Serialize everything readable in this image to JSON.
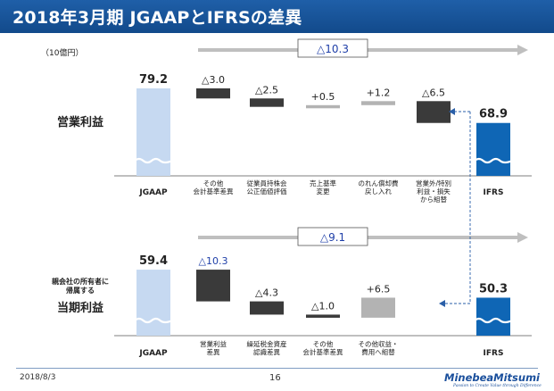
{
  "header": {
    "title": "2018年3月期 JGAAPとIFRSの差異"
  },
  "unit_label": "（10億円）",
  "footer": {
    "date": "2018/8/3",
    "page": "16"
  },
  "logo": {
    "name": "MinebeaMitsumi",
    "tagline": "Passion to Create Value through Difference"
  },
  "colors": {
    "header": "#124a8b",
    "jgaap": "#c6d9f1",
    "ifrs": "#0f66b5",
    "negative": "#3a3a3a",
    "positive": "#b3b3b3",
    "total_arrow": "#bfbfbf",
    "highlight_text": "#1f3fa8"
  },
  "chart_data": [
    {
      "type": "waterfall",
      "row_label": "営業利益",
      "total_change": {
        "label": "△10.3",
        "value": -10.3
      },
      "start": {
        "category": "JGAAP",
        "value": 79.2,
        "label": "79.2"
      },
      "end": {
        "category": "IFRS",
        "value": 68.9,
        "label": "68.9"
      },
      "steps": [
        {
          "category": "その他\n会計基準差異",
          "value": -3.0,
          "label": "△3.0"
        },
        {
          "category": "従業員持株会\n公正価値評価",
          "value": -2.5,
          "label": "△2.5"
        },
        {
          "category": "売上基準\n変更",
          "value": 0.5,
          "label": "+0.5"
        },
        {
          "category": "のれん償却費\n戻し入れ",
          "value": 1.2,
          "label": "+1.2"
        },
        {
          "category": "営業外/特別\n利益・損失\nから組替",
          "value": -6.5,
          "label": "△6.5"
        }
      ]
    },
    {
      "type": "waterfall",
      "row_label": "当期利益",
      "row_sublabel": "親会社の所有者に\n帰属する",
      "total_change": {
        "label": "△9.1",
        "value": -9.1
      },
      "start": {
        "category": "JGAAP",
        "value": 59.4,
        "label": "59.4"
      },
      "end": {
        "category": "IFRS",
        "value": 50.3,
        "label": "50.3"
      },
      "steps": [
        {
          "category": "営業利益\n差異",
          "value": -10.3,
          "label": "△10.3",
          "highlight": true
        },
        {
          "category": "繰延税金資産\n認識差異",
          "value": -4.3,
          "label": "△4.3"
        },
        {
          "category": "その他\n会計基準差異",
          "value": -1.0,
          "label": "△1.0"
        },
        {
          "category": "その他収益・\n費用へ組替",
          "value": 6.5,
          "label": "+6.5"
        }
      ]
    }
  ]
}
